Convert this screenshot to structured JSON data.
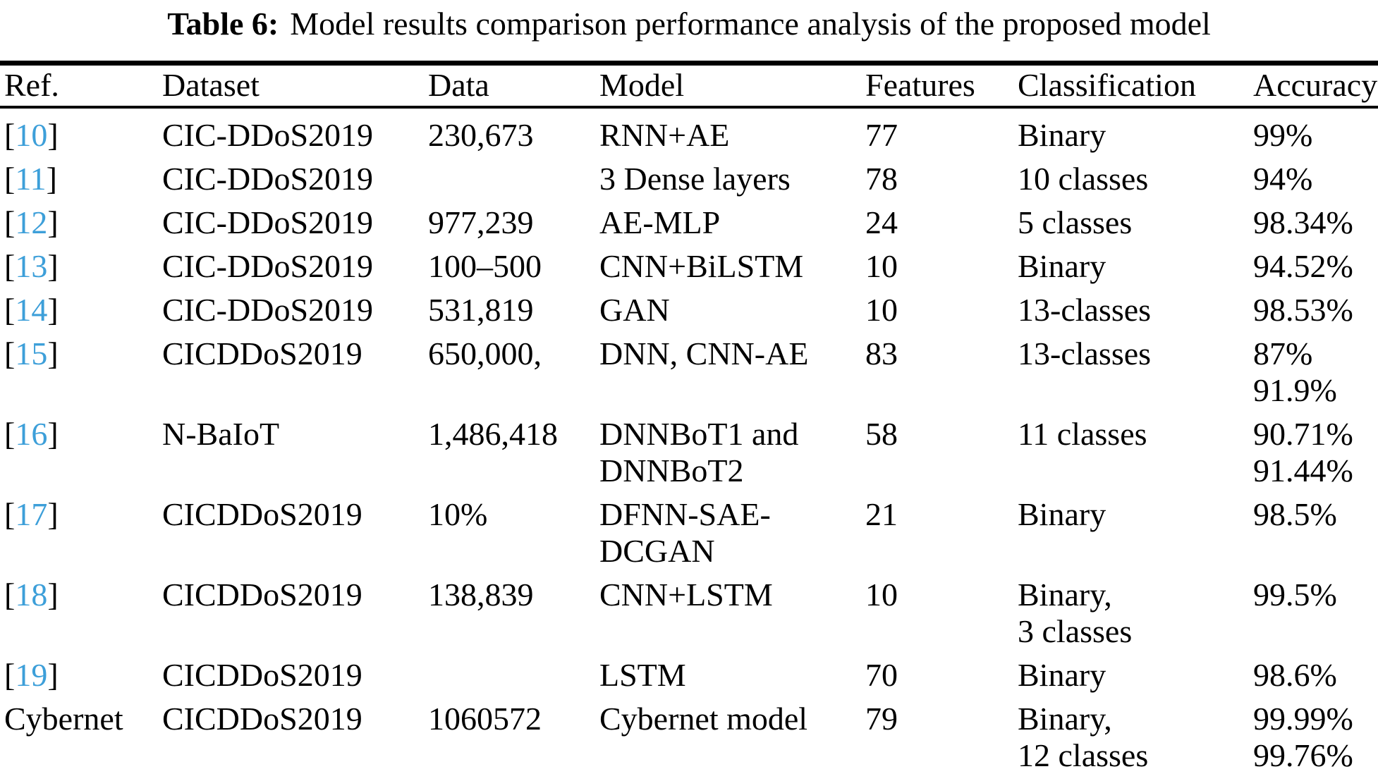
{
  "title": {
    "label": "Table 6:",
    "text": "Model results comparison performance analysis of the proposed model"
  },
  "columns": {
    "ref": "Ref.",
    "dataset": "Dataset",
    "data": "Data",
    "model": "Model",
    "features": "Features",
    "classification": "Classification",
    "accuracy": "Accuracy"
  },
  "colors": {
    "reference_link": "#3d9fd9",
    "text": "#000000",
    "rule": "#000000"
  },
  "rows": [
    {
      "ref": "10",
      "ref_is_link": true,
      "dataset": "CIC-DDoS2019",
      "data": "230,673",
      "model": [
        "RNN+AE"
      ],
      "features": "77",
      "classification": [
        "Binary"
      ],
      "accuracy": [
        "99%"
      ]
    },
    {
      "ref": "11",
      "ref_is_link": true,
      "dataset": "CIC-DDoS2019",
      "data": "",
      "model": [
        "3 Dense layers"
      ],
      "features": "78",
      "classification": [
        "10 classes"
      ],
      "accuracy": [
        "94%"
      ]
    },
    {
      "ref": "12",
      "ref_is_link": true,
      "dataset": "CIC-DDoS2019",
      "data": "977,239",
      "model": [
        "AE-MLP"
      ],
      "features": "24",
      "classification": [
        "5 classes"
      ],
      "accuracy": [
        "98.34%"
      ]
    },
    {
      "ref": "13",
      "ref_is_link": true,
      "dataset": "CIC-DDoS2019",
      "data": "100–500",
      "model": [
        "CNN+BiLSTM"
      ],
      "features": "10",
      "classification": [
        "Binary"
      ],
      "accuracy": [
        "94.52%"
      ]
    },
    {
      "ref": "14",
      "ref_is_link": true,
      "dataset": "CIC-DDoS2019",
      "data": "531,819",
      "model": [
        "GAN"
      ],
      "features": "10",
      "classification": [
        "13-classes"
      ],
      "accuracy": [
        "98.53%"
      ]
    },
    {
      "ref": "15",
      "ref_is_link": true,
      "dataset": "CICDDoS2019",
      "data": "650,000,",
      "model": [
        "DNN, CNN-AE"
      ],
      "features": "83",
      "classification": [
        "13-classes"
      ],
      "accuracy": [
        "87%",
        "91.9%"
      ]
    },
    {
      "ref": "16",
      "ref_is_link": true,
      "dataset": "N-BaIoT",
      "data": "1,486,418",
      "model": [
        "DNNBoT1 and",
        "DNNBoT2"
      ],
      "features": "58",
      "classification": [
        "11 classes"
      ],
      "accuracy": [
        "90.71%",
        "91.44%"
      ]
    },
    {
      "ref": "17",
      "ref_is_link": true,
      "dataset": "CICDDoS2019",
      "data": "10%",
      "model": [
        "DFNN-SAE-",
        "DCGAN"
      ],
      "features": "21",
      "classification": [
        "Binary"
      ],
      "accuracy": [
        "98.5%"
      ]
    },
    {
      "ref": "18",
      "ref_is_link": true,
      "dataset": "CICDDoS2019",
      "data": "138,839",
      "model": [
        "CNN+LSTM"
      ],
      "features": "10",
      "classification": [
        "Binary,",
        "3 classes"
      ],
      "accuracy": [
        "99.5%"
      ]
    },
    {
      "ref": "19",
      "ref_is_link": true,
      "dataset": "CICDDoS2019",
      "data": "",
      "model": [
        "LSTM"
      ],
      "features": "70",
      "classification": [
        "Binary"
      ],
      "accuracy": [
        "98.6%"
      ]
    },
    {
      "ref": "Cybernet",
      "ref_is_link": false,
      "dataset": "CICDDoS2019",
      "data": "1060572",
      "model": [
        "Cybernet model"
      ],
      "features": "79",
      "classification": [
        "Binary,",
        "12 classes"
      ],
      "accuracy": [
        "99.99%",
        "99.76%"
      ]
    }
  ]
}
